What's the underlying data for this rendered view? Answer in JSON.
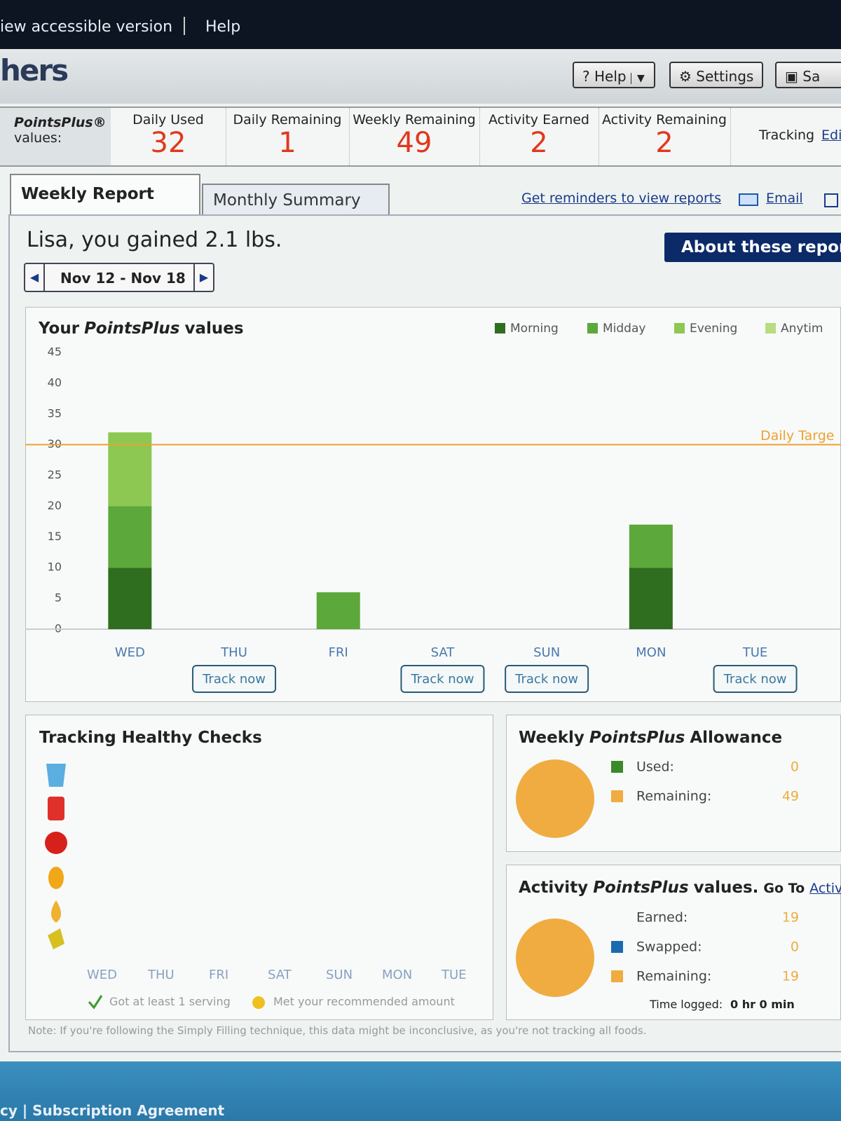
{
  "top_bar": {
    "links": [
      "iew accessible version",
      "Help"
    ]
  },
  "header": {
    "logo": "hers",
    "buttons": [
      "? Help",
      "Settings",
      "Sa"
    ]
  },
  "stats": {
    "brand": "PointsPlus®",
    "brand_suffix": "values:",
    "items": [
      {
        "label": "Daily Used",
        "value": 32
      },
      {
        "label": "Daily Remaining",
        "value": 1
      },
      {
        "label": "Weekly Remaining",
        "value": 49
      },
      {
        "label": "Activity Earned",
        "value": 2
      },
      {
        "label": "Activity Remaining",
        "value": 2
      }
    ],
    "tracking": "Tracking",
    "tracking_link": "Edi"
  },
  "tabs": [
    "Weekly Report",
    "Monthly Summary"
  ],
  "report_links": [
    "Get reminders to view reports",
    "Email"
  ],
  "headline": "Lisa, you gained 2.1 lbs.",
  "about_button": "About these report",
  "date_range": "Nov 12 - Nov 18",
  "chart_data": {
    "type": "bar",
    "stacked": true,
    "title_parts": [
      "Your",
      "PointsPlus",
      "values"
    ],
    "categories": [
      "WED",
      "THU",
      "FRI",
      "SAT",
      "SUN",
      "MON",
      "TUE"
    ],
    "series": [
      {
        "name": "Morning",
        "color": "#2f6e1f",
        "values": [
          10,
          0,
          0,
          0,
          0,
          10,
          0
        ]
      },
      {
        "name": "Midday",
        "color": "#5da83a",
        "values": [
          10,
          0,
          6,
          0,
          0,
          7,
          0
        ]
      },
      {
        "name": "Evening",
        "color": "#8cc852",
        "values": [
          12,
          0,
          0,
          0,
          0,
          0,
          0
        ]
      },
      {
        "name": "Anytim",
        "color": "#b8dc80",
        "values": [
          0,
          0,
          0,
          0,
          0,
          0,
          0
        ]
      }
    ],
    "ylim": [
      0,
      45
    ],
    "yticks": [
      0,
      5,
      10,
      15,
      20,
      25,
      30,
      35,
      40,
      45
    ],
    "grid": false,
    "target": {
      "value": 30,
      "label": "Daily Targe",
      "color": "#f0a030"
    },
    "track_now": [
      null,
      "Track now",
      null,
      "Track now",
      "Track now",
      null,
      "Track now"
    ]
  },
  "healthy_checks": {
    "title": "Tracking Healthy Checks",
    "days": [
      "WED",
      "THU",
      "FRI",
      "SAT",
      "SUN",
      "MON",
      "TUE"
    ],
    "legend": [
      "Got at least 1 serving",
      "Met your recommended amount"
    ]
  },
  "weekly_allowance": {
    "title_parts": [
      "Weekly",
      "PointsPlus",
      "Allowance"
    ],
    "slices": [
      {
        "name": "Used:",
        "color": "#3a8a2a",
        "value": 0
      },
      {
        "name": "Remaining:",
        "color": "#f0ac40",
        "value": 49
      }
    ]
  },
  "activity": {
    "title_parts": [
      "Activity",
      "PointsPlus",
      "values."
    ],
    "go_to": "Go To",
    "link": "Active Li",
    "earned": {
      "name": "Earned:",
      "value": 19
    },
    "slices": [
      {
        "name": "Swapped:",
        "color": "#1a6ab0",
        "value": 0
      },
      {
        "name": "Remaining:",
        "color": "#f0ac40",
        "value": 19
      }
    ],
    "time_label": "Time logged:",
    "time_value": "0 hr 0 min"
  },
  "note": "Note: If you're following the Simply Filling technique, this data might be inconclusive, as you're not tracking all foods.",
  "footer": "cy | Subscription Agreement"
}
